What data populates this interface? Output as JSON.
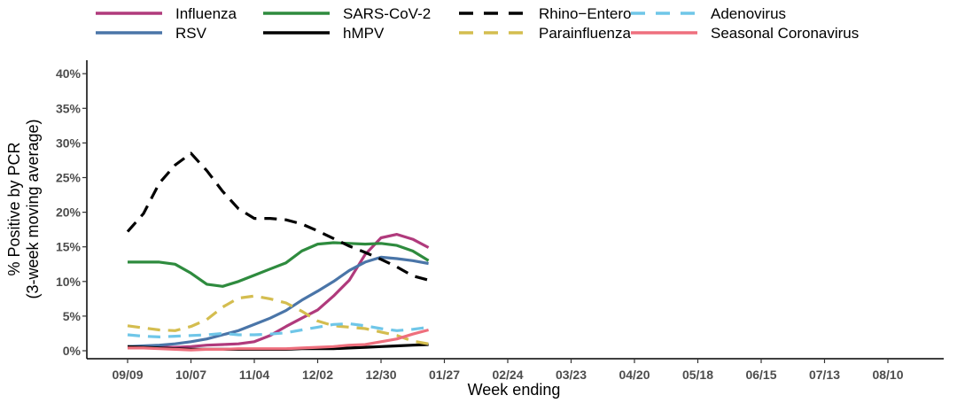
{
  "chart_data": {
    "type": "line",
    "xlabel": "Week ending",
    "ylabel": [
      "% Positive by PCR",
      "(3-week moving average)"
    ],
    "x_tick_labels": [
      "09/09",
      "10/07",
      "11/04",
      "12/02",
      "12/30",
      "01/27",
      "02/24",
      "03/23",
      "04/20",
      "05/18",
      "06/15",
      "07/13",
      "08/10"
    ],
    "y_tick_labels": [
      "0%",
      "5%",
      "10%",
      "15%",
      "20%",
      "25%",
      "30%",
      "35%",
      "40%"
    ],
    "ylim": [
      0,
      42
    ],
    "weeks": [
      "09/09",
      "09/16",
      "09/23",
      "09/30",
      "10/07",
      "10/14",
      "10/21",
      "10/28",
      "11/04",
      "11/11",
      "11/18",
      "11/25",
      "12/02",
      "12/09",
      "12/16",
      "12/23",
      "12/30",
      "01/06",
      "01/13",
      "01/20"
    ],
    "series": [
      {
        "name": "Influenza",
        "color": "#b03a7c",
        "dash": "solid",
        "values": [
          0.5,
          0.5,
          0.5,
          0.5,
          0.6,
          0.8,
          0.9,
          1.0,
          1.3,
          2.2,
          3.5,
          4.7,
          5.9,
          7.9,
          10.2,
          13.9,
          16.3,
          16.8,
          16.1,
          14.9
        ]
      },
      {
        "name": "RSV",
        "color": "#4a75a8",
        "dash": "solid",
        "values": [
          0.6,
          0.7,
          0.8,
          1.0,
          1.3,
          1.7,
          2.3,
          2.9,
          3.8,
          4.7,
          5.8,
          7.3,
          8.6,
          10.0,
          11.6,
          12.8,
          13.5,
          13.3,
          13.0,
          12.6
        ]
      },
      {
        "name": "SARS-CoV-2",
        "color": "#2e8b3e",
        "dash": "solid",
        "values": [
          12.8,
          12.8,
          12.8,
          12.5,
          11.2,
          9.6,
          9.3,
          10.0,
          10.9,
          11.8,
          12.7,
          14.4,
          15.4,
          15.6,
          15.5,
          15.4,
          15.5,
          15.2,
          14.4,
          13.0
        ]
      },
      {
        "name": "hMPV",
        "color": "#000000",
        "dash": "solid",
        "values": [
          0.6,
          0.5,
          0.4,
          0.3,
          0.2,
          0.2,
          0.2,
          0.2,
          0.2,
          0.2,
          0.2,
          0.3,
          0.3,
          0.3,
          0.4,
          0.5,
          0.6,
          0.7,
          0.8,
          0.9
        ]
      },
      {
        "name": "Rhino−Entero",
        "color": "#000000",
        "dash": "dashed",
        "values": [
          17.2,
          19.8,
          24.2,
          26.8,
          28.5,
          26.0,
          23.0,
          20.5,
          19.1,
          19.1,
          18.9,
          18.3,
          17.3,
          16.2,
          15.1,
          14.2,
          13.2,
          12.1,
          10.8,
          10.2
        ]
      },
      {
        "name": "Parainfluenza",
        "color": "#d4bd4f",
        "dash": "dashed",
        "values": [
          3.6,
          3.3,
          3.0,
          2.9,
          3.5,
          4.5,
          6.3,
          7.6,
          7.9,
          7.5,
          6.9,
          5.7,
          4.3,
          3.6,
          3.4,
          3.2,
          2.7,
          2.2,
          1.4,
          1.0
        ]
      },
      {
        "name": "Adenovirus",
        "color": "#6fc6e8",
        "dash": "dashed",
        "values": [
          2.3,
          2.1,
          2.0,
          2.1,
          2.2,
          2.3,
          2.5,
          2.3,
          2.3,
          2.4,
          2.6,
          3.0,
          3.4,
          3.8,
          3.9,
          3.6,
          3.2,
          2.9,
          3.1,
          3.4
        ]
      },
      {
        "name": "Seasonal Coronavirus",
        "color": "#ee6f7d",
        "dash": "solid",
        "values": [
          0.4,
          0.4,
          0.3,
          0.2,
          0.1,
          0.2,
          0.2,
          0.3,
          0.3,
          0.3,
          0.3,
          0.4,
          0.5,
          0.6,
          0.8,
          0.9,
          1.3,
          1.7,
          2.4,
          3.0
        ]
      }
    ],
    "grid": false,
    "legend_position": "top"
  }
}
